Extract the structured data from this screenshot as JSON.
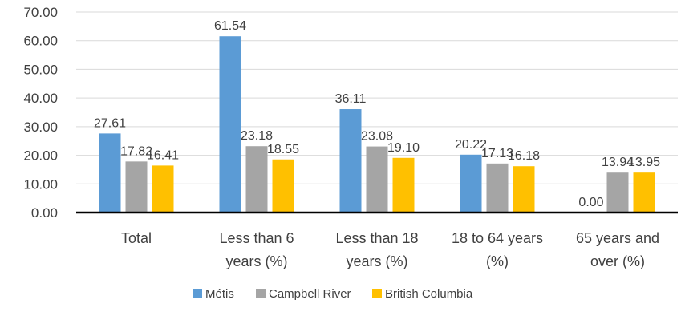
{
  "chart_data": {
    "type": "bar",
    "title": "",
    "xlabel": "",
    "ylabel": "",
    "ylim": [
      0,
      70
    ],
    "yticks": [
      "0.00",
      "10.00",
      "20.00",
      "30.00",
      "40.00",
      "50.00",
      "60.00",
      "70.00"
    ],
    "grid": true,
    "legend_position": "bottom",
    "categories": [
      [
        "Total"
      ],
      [
        "Less than 6",
        "years (%)"
      ],
      [
        "Less than 18",
        "years (%)"
      ],
      [
        "18 to 64 years",
        "(%)"
      ],
      [
        "65 years and",
        "over (%)"
      ]
    ],
    "series": [
      {
        "name": "Métis",
        "color": "#5B9BD5",
        "values": [
          27.61,
          61.54,
          36.11,
          20.22,
          0.0
        ]
      },
      {
        "name": "Campbell River",
        "color": "#A5A5A5",
        "values": [
          17.82,
          23.18,
          23.08,
          17.13,
          13.94
        ]
      },
      {
        "name": "British Columbia",
        "color": "#FFC000",
        "values": [
          16.41,
          18.55,
          19.1,
          16.18,
          13.95
        ]
      }
    ]
  }
}
